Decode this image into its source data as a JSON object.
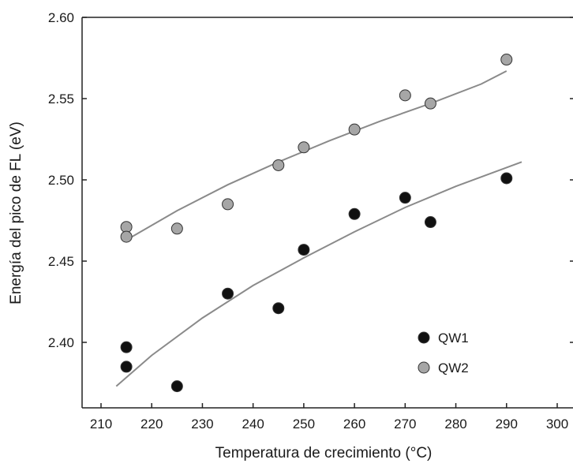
{
  "chart_data": {
    "type": "scatter",
    "xlabel": "Temperatura de crecimiento (°C)",
    "ylabel": "Energía del pico de FL (eV)",
    "xlim": [
      204,
      300
    ],
    "ylim": [
      2.36,
      2.6
    ],
    "x_ticks": [
      210,
      220,
      230,
      240,
      250,
      260,
      270,
      280,
      290,
      300
    ],
    "x_tick_labels": [
      "210",
      "220",
      "230",
      "240",
      "250",
      "260",
      "270",
      "280",
      "290",
      "300"
    ],
    "y_ticks": [
      2.4,
      2.45,
      2.5,
      2.55,
      2.6
    ],
    "y_tick_labels": [
      "2.40",
      "2.45",
      "2.50",
      "2.55",
      "2.60"
    ],
    "grid": false,
    "legend_position": "bottom-right",
    "series": [
      {
        "name": "QW1",
        "color": "#111111",
        "points": [
          [
            215,
            2.397
          ],
          [
            215,
            2.385
          ],
          [
            225,
            2.373
          ],
          [
            235,
            2.43
          ],
          [
            245,
            2.421
          ],
          [
            250,
            2.457
          ],
          [
            260,
            2.479
          ],
          [
            270,
            2.489
          ],
          [
            275,
            2.474
          ],
          [
            290,
            2.501
          ]
        ],
        "fit": [
          [
            213,
            2.373
          ],
          [
            220,
            2.392
          ],
          [
            230,
            2.415
          ],
          [
            240,
            2.435
          ],
          [
            250,
            2.452
          ],
          [
            260,
            2.468
          ],
          [
            270,
            2.483
          ],
          [
            280,
            2.496
          ],
          [
            293,
            2.511
          ]
        ]
      },
      {
        "name": "QW2",
        "color": "#a6a6a6",
        "points": [
          [
            215,
            2.471
          ],
          [
            215,
            2.465
          ],
          [
            225,
            2.47
          ],
          [
            235,
            2.485
          ],
          [
            245,
            2.509
          ],
          [
            250,
            2.52
          ],
          [
            260,
            2.531
          ],
          [
            270,
            2.552
          ],
          [
            275,
            2.547
          ],
          [
            290,
            2.574
          ]
        ],
        "fit": [
          [
            215,
            2.463
          ],
          [
            225,
            2.481
          ],
          [
            235,
            2.497
          ],
          [
            245,
            2.511
          ],
          [
            255,
            2.524
          ],
          [
            265,
            2.536
          ],
          [
            275,
            2.547
          ],
          [
            285,
            2.559
          ],
          [
            290,
            2.567
          ]
        ]
      }
    ]
  }
}
